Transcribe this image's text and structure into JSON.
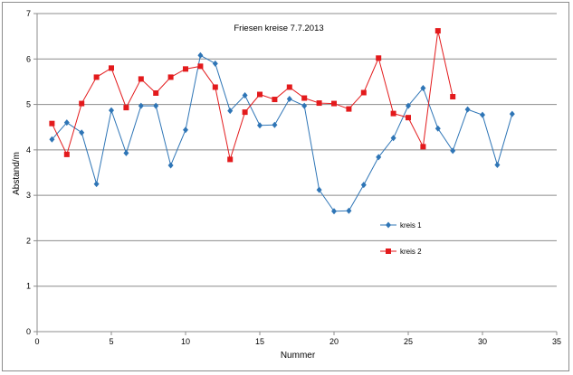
{
  "chart_data": {
    "type": "line",
    "title": "Friesen  kreise  7.7.2013",
    "xlabel": "Nummer",
    "ylabel": "Abstand/m",
    "xlim": [
      0,
      35
    ],
    "ylim": [
      0,
      7
    ],
    "xticks": [
      0,
      5,
      10,
      15,
      20,
      25,
      30,
      35
    ],
    "yticks": [
      0,
      1,
      2,
      3,
      4,
      5,
      6,
      7
    ],
    "grid": "horizontal",
    "legend_position": "center-right",
    "series": [
      {
        "name": "kreis 1",
        "color": "#2e75b6",
        "marker": "diamond",
        "x": [
          1,
          2,
          3,
          4,
          5,
          6,
          7,
          8,
          9,
          10,
          11,
          12,
          13,
          14,
          15,
          16,
          17,
          18,
          19,
          20,
          21,
          22,
          23,
          24,
          25,
          26,
          27,
          28,
          29,
          30,
          31,
          32
        ],
        "y": [
          4.23,
          4.6,
          4.38,
          3.25,
          4.87,
          3.93,
          4.97,
          4.97,
          3.66,
          4.44,
          6.08,
          5.9,
          4.86,
          5.2,
          4.54,
          4.55,
          5.12,
          4.97,
          3.12,
          2.65,
          2.66,
          3.23,
          3.84,
          4.26,
          4.97,
          5.36,
          4.47,
          3.98,
          4.89,
          4.77,
          3.67,
          4.79
        ]
      },
      {
        "name": "kreis 2",
        "color": "#e31a1c",
        "marker": "square",
        "x": [
          1,
          2,
          3,
          4,
          5,
          6,
          7,
          8,
          9,
          10,
          11,
          12,
          13,
          14,
          15,
          16,
          17,
          18,
          19,
          20,
          21,
          22,
          23,
          24,
          25,
          26,
          27,
          28
        ],
        "y": [
          4.58,
          3.9,
          5.02,
          5.6,
          5.8,
          4.93,
          5.56,
          5.25,
          5.6,
          5.78,
          5.84,
          5.38,
          3.79,
          4.83,
          5.22,
          5.11,
          5.38,
          5.14,
          5.03,
          5.02,
          4.9,
          5.26,
          6.02,
          4.8,
          4.71,
          4.07,
          6.62,
          5.17
        ]
      }
    ]
  }
}
